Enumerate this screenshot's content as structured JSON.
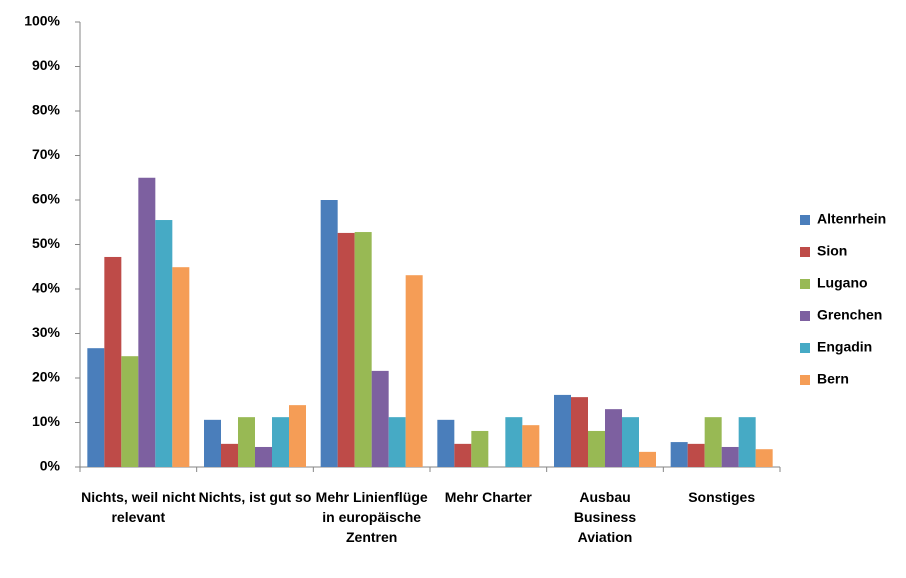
{
  "chart_data": {
    "type": "bar",
    "categories": [
      "Nichts, weil nicht relevant",
      "Nichts, ist gut so",
      "Mehr Linienflüge in europäische Zentren",
      "Mehr Charter",
      "Ausbau Business Aviation",
      "Sonstiges"
    ],
    "series": [
      {
        "name": "Altenrhein",
        "color": "#4a7ebb",
        "values": [
          26.7,
          10.6,
          60,
          10.6,
          16.2,
          5.6
        ]
      },
      {
        "name": "Sion",
        "color": "#be4b48",
        "values": [
          47.2,
          5.2,
          52.6,
          5.2,
          15.7,
          5.2
        ]
      },
      {
        "name": "Lugano",
        "color": "#98b954",
        "values": [
          24.9,
          11.2,
          52.8,
          8.1,
          8.1,
          11.2
        ]
      },
      {
        "name": "Grenchen",
        "color": "#7d60a0",
        "values": [
          65,
          4.5,
          21.6,
          0,
          13,
          4.5
        ]
      },
      {
        "name": "Engadin",
        "color": "#46aac5",
        "values": [
          55.5,
          11.2,
          11.2,
          11.2,
          11.2,
          11.2
        ]
      },
      {
        "name": "Bern",
        "color": "#f59d56",
        "values": [
          44.9,
          13.9,
          43.1,
          9.4,
          3.4,
          4.0
        ]
      }
    ],
    "ylim": [
      0,
      100
    ],
    "yticks": [
      {
        "value": 0,
        "label": "0%"
      },
      {
        "value": 10,
        "label": "10%"
      },
      {
        "value": 20,
        "label": "20%"
      },
      {
        "value": 30,
        "label": "30%"
      },
      {
        "value": 40,
        "label": "40%"
      },
      {
        "value": 50,
        "label": "50%"
      },
      {
        "value": 60,
        "label": "60%"
      },
      {
        "value": 70,
        "label": "70%"
      },
      {
        "value": 80,
        "label": "80%"
      },
      {
        "value": 90,
        "label": "90%"
      },
      {
        "value": 100,
        "label": "100%"
      }
    ],
    "grid": false,
    "legend": "right"
  }
}
